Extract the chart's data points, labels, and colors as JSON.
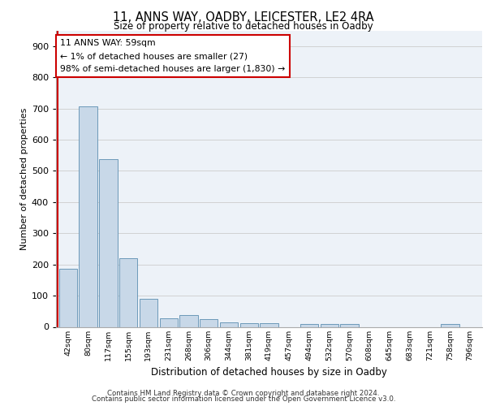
{
  "title1": "11, ANNS WAY, OADBY, LEICESTER, LE2 4RA",
  "title2": "Size of property relative to detached houses in Oadby",
  "xlabel": "Distribution of detached houses by size in Oadby",
  "ylabel": "Number of detached properties",
  "bar_labels": [
    "42sqm",
    "80sqm",
    "117sqm",
    "155sqm",
    "193sqm",
    "231sqm",
    "268sqm",
    "306sqm",
    "344sqm",
    "381sqm",
    "419sqm",
    "457sqm",
    "494sqm",
    "532sqm",
    "570sqm",
    "608sqm",
    "645sqm",
    "683sqm",
    "721sqm",
    "758sqm",
    "796sqm"
  ],
  "bar_values": [
    185,
    706,
    538,
    221,
    91,
    27,
    38,
    24,
    14,
    13,
    11,
    0,
    10,
    10,
    8,
    0,
    0,
    0,
    0,
    9,
    0
  ],
  "bar_color": "#c8d8e8",
  "bar_edge_color": "#5b8db0",
  "ylim": [
    0,
    950
  ],
  "yticks": [
    0,
    100,
    200,
    300,
    400,
    500,
    600,
    700,
    800,
    900
  ],
  "annotation_title": "11 ANNS WAY: 59sqm",
  "annotation_line1": "← 1% of detached houses are smaller (27)",
  "annotation_line2": "98% of semi-detached houses are larger (1,830) →",
  "annotation_box_color": "#ffffff",
  "annotation_box_edgecolor": "#cc0000",
  "property_line_color": "#cc0000",
  "grid_color": "#cccccc",
  "background_color": "#edf2f8",
  "footer1": "Contains HM Land Registry data © Crown copyright and database right 2024.",
  "footer2": "Contains public sector information licensed under the Open Government Licence v3.0."
}
